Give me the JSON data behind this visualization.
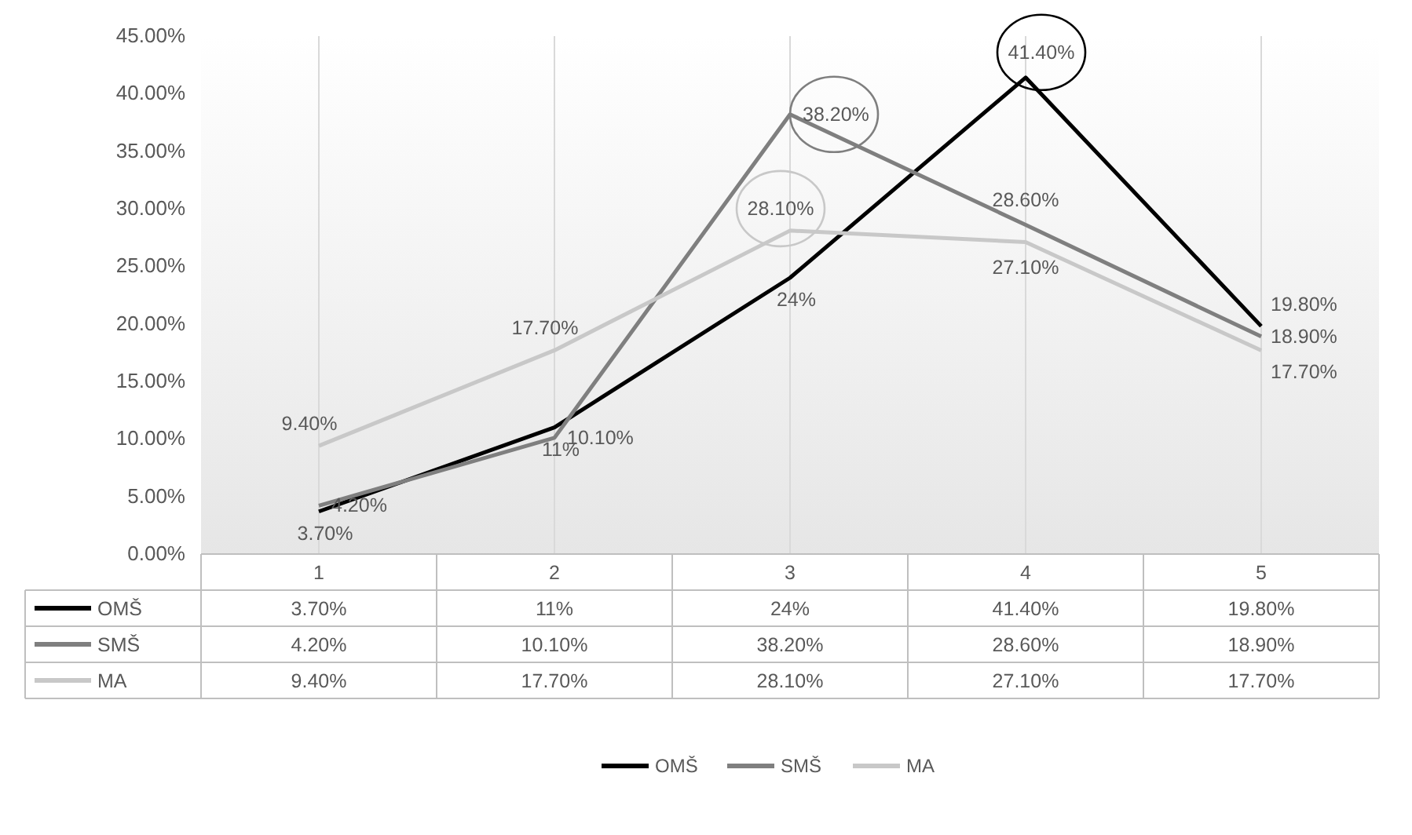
{
  "chart_data": {
    "type": "line",
    "categories": [
      "1",
      "2",
      "3",
      "4",
      "5"
    ],
    "ylim": [
      0,
      45
    ],
    "yticks": [
      {
        "value": 0,
        "label": "0.00%"
      },
      {
        "value": 5,
        "label": "5.00%"
      },
      {
        "value": 10,
        "label": "10.00%"
      },
      {
        "value": 15,
        "label": "15.00%"
      },
      {
        "value": 20,
        "label": "20.00%"
      },
      {
        "value": 25,
        "label": "25.00%"
      },
      {
        "value": 30,
        "label": "30.00%"
      },
      {
        "value": 35,
        "label": "35.00%"
      },
      {
        "value": 40,
        "label": "40.00%"
      },
      {
        "value": 45,
        "label": "45.00%"
      }
    ],
    "grid": "x",
    "legend": "bottom",
    "marker": "none",
    "line_style": "solid",
    "series": [
      {
        "name": "OMŠ",
        "color": "#000000",
        "values": [
          3.7,
          11,
          24,
          41.4,
          19.8
        ],
        "value_labels": [
          "3.70%",
          "11%",
          "24%",
          "41.40%",
          "19.80%"
        ]
      },
      {
        "name": "SMŠ",
        "color": "#7f7f7f",
        "values": [
          4.2,
          10.1,
          38.2,
          28.6,
          18.9
        ],
        "value_labels": [
          "4.20%",
          "10.10%",
          "38.20%",
          "28.60%",
          "18.90%"
        ]
      },
      {
        "name": "MA",
        "color": "#c8c8c8",
        "values": [
          9.4,
          17.7,
          28.1,
          27.1,
          17.7
        ],
        "value_labels": [
          "9.40%",
          "17.70%",
          "28.10%",
          "27.10%",
          "17.70%"
        ]
      }
    ]
  }
}
